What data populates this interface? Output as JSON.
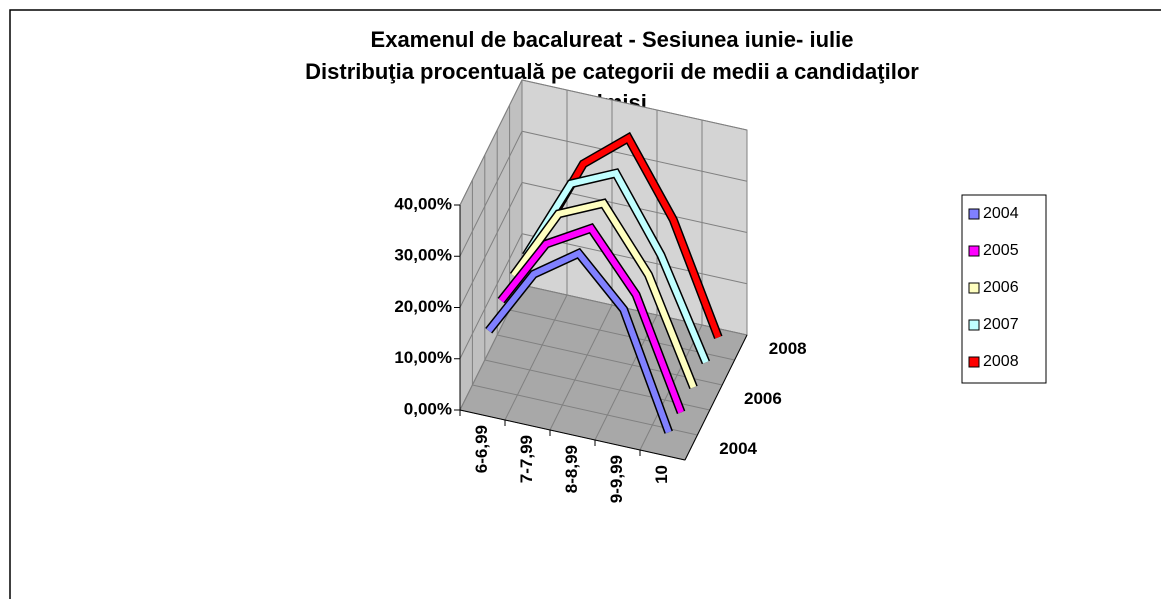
{
  "chart_data": {
    "type": "line3d",
    "title": [
      "Examenul de bacalureat - Sesiunea iunie- iulie",
      "Distribuţia procentuală pe categorii de medii a candidaţilor",
      "admişi"
    ],
    "categories": [
      "6-6,99",
      "7-7,99",
      "8-8,99",
      "9-9,99",
      "10"
    ],
    "series": [
      {
        "name": "2004",
        "color": "#8080ff",
        "values": [
          14,
          27,
          33,
          24,
          2
        ]
      },
      {
        "name": "2005",
        "color": "#ff00ff",
        "values": [
          15,
          28,
          33,
          22,
          1
        ]
      },
      {
        "name": "2006",
        "color": "#ffffc0",
        "values": [
          15,
          29,
          33,
          21,
          1
        ]
      },
      {
        "name": "2007",
        "color": "#c0ffff",
        "values": [
          14,
          30,
          34,
          20,
          1
        ]
      },
      {
        "name": "2008",
        "color": "#ff0000",
        "values": [
          12,
          29,
          36,
          22,
          1
        ]
      }
    ],
    "depth_labels": [
      "2004",
      "2006",
      "2008"
    ],
    "ylim": [
      0,
      40
    ],
    "yticks": [
      {
        "value": 0,
        "label": "0,00%"
      },
      {
        "value": 10,
        "label": "10,00%"
      },
      {
        "value": 20,
        "label": "20,00%"
      },
      {
        "value": 30,
        "label": "30,00%"
      },
      {
        "value": 40,
        "label": "40,00%"
      }
    ],
    "grid": true
  }
}
